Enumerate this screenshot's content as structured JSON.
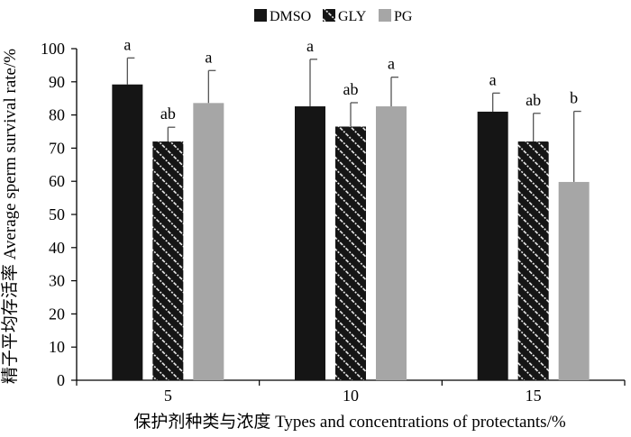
{
  "chart_data": {
    "type": "bar",
    "categories": [
      "5",
      "10",
      "15"
    ],
    "ylabel": "精子平均存活率 Average sperm survival rate/%",
    "xlabel": "保护剂种类与浓度 Types and concentrations of protectants/%",
    "ylim": [
      0,
      100
    ],
    "yticks": [
      "0",
      "10",
      "20",
      "30",
      "40",
      "50",
      "60",
      "70",
      "80",
      "90",
      "100"
    ],
    "grid": false,
    "legend_position": "top-center",
    "series": [
      {
        "name": "DMSO",
        "color": "#151515",
        "pattern": "solid",
        "values": [
          89.2,
          82.6,
          81.0
        ],
        "errors": [
          8.0,
          14.2,
          5.6
        ],
        "labels": [
          "a",
          "a",
          "a"
        ]
      },
      {
        "name": "GLY",
        "color": "#151515",
        "pattern": "hatch",
        "values": [
          72.0,
          76.5,
          72.0
        ],
        "errors": [
          4.3,
          7.2,
          8.5
        ],
        "labels": [
          "ab",
          "ab",
          "ab"
        ]
      },
      {
        "name": "PG",
        "color": "#a6a6a6",
        "pattern": "solid",
        "values": [
          83.6,
          82.6,
          59.8
        ],
        "errors": [
          9.8,
          8.8,
          21.3
        ],
        "labels": [
          "a",
          "a",
          "b"
        ]
      }
    ]
  }
}
